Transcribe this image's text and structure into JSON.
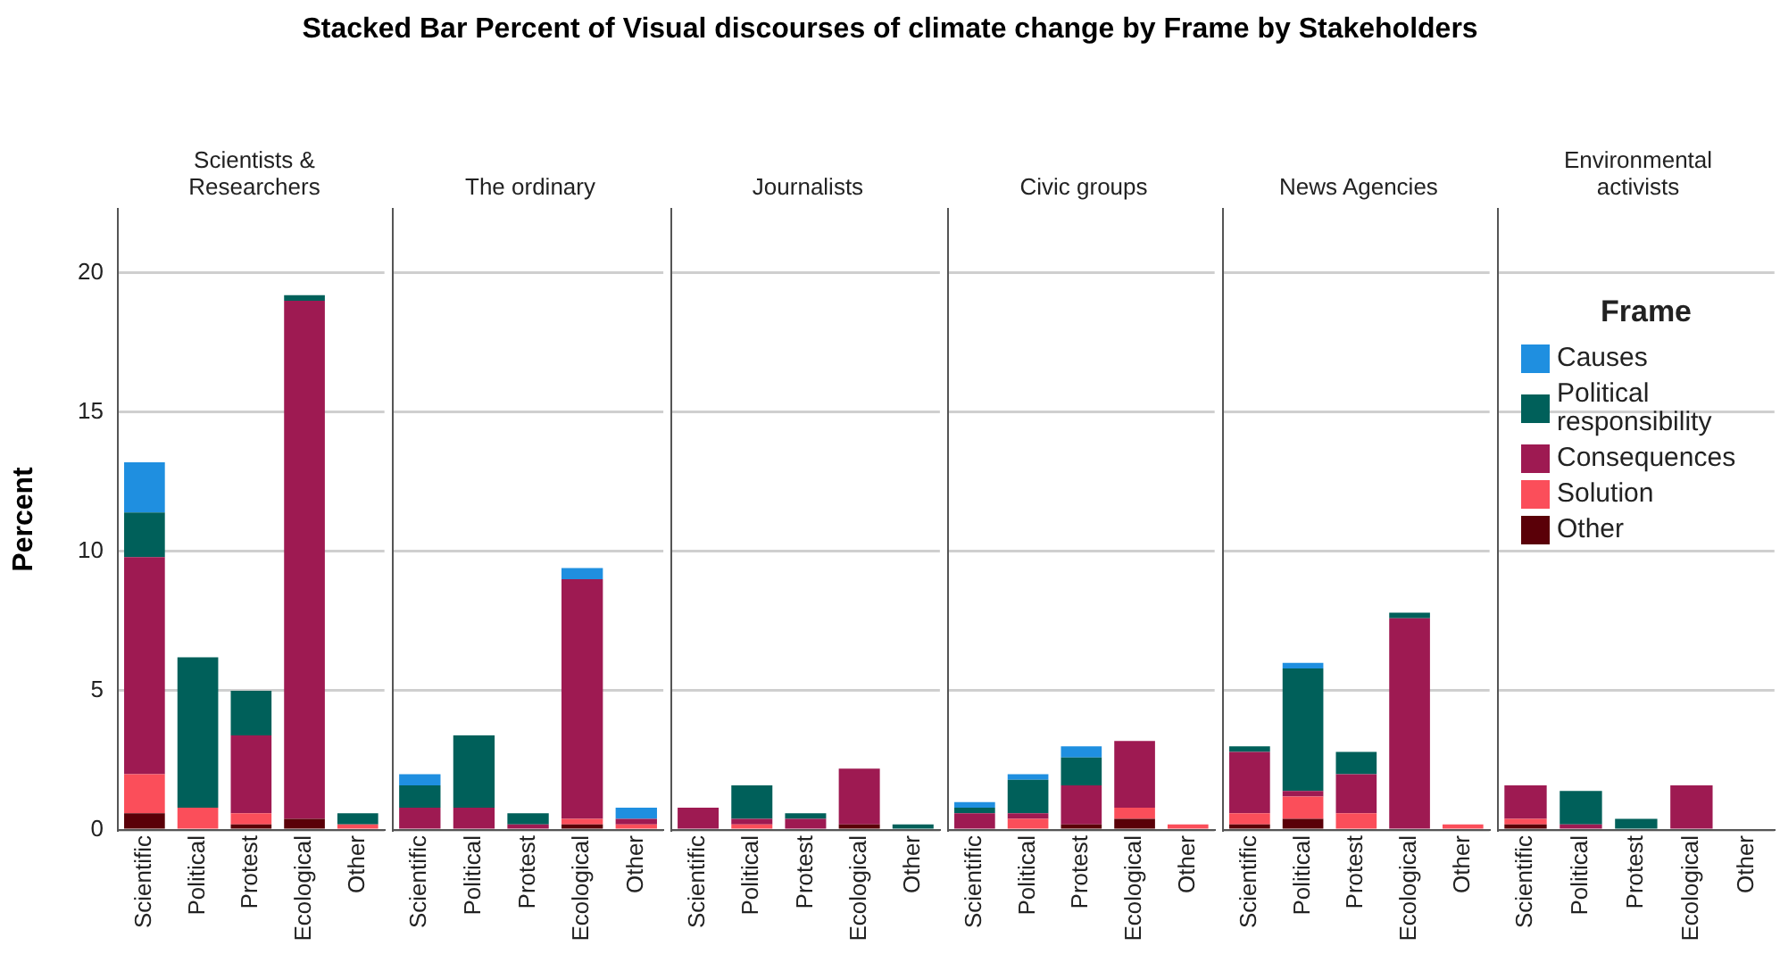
{
  "chart_data": [
    {
      "type": "bar",
      "title": "Scientists & Researchers",
      "annotations": [
        "Stacked Bar Percent of Visual discourses of climate change by Frame by Stakeholders"
      ],
      "ylabel": "Percent",
      "categories": [
        "Scientific",
        "Political",
        "Protest",
        "Ecological",
        "Other"
      ],
      "stacked": true,
      "ylim": [
        0,
        22.3
      ],
      "yticks": [
        0,
        5,
        10,
        15,
        20
      ],
      "grid": "y",
      "legend": false,
      "series": [
        {
          "color": "#5a0008",
          "values": [
            0.6,
            0,
            0.2,
            0.4,
            0
          ]
        },
        {
          "color": "#fb4e5a",
          "values": [
            1.4,
            0.8,
            0.4,
            0,
            0.2
          ]
        },
        {
          "color": "#9e1a52",
          "values": [
            7.8,
            0,
            2.8,
            18.6,
            0
          ]
        },
        {
          "color": "#00605a",
          "values": [
            1.6,
            5.4,
            1.6,
            0.2,
            0.4
          ]
        },
        {
          "color": "#1f8fe0",
          "values": [
            1.8,
            0,
            0,
            0,
            0
          ]
        }
      ]
    },
    {
      "type": "bar",
      "title": "The ordinary",
      "categories": [
        "Scientific",
        "Political",
        "Protest",
        "Ecological",
        "Other"
      ],
      "stacked": true,
      "ylim": [
        0,
        22.3
      ],
      "yticks": [
        0,
        5,
        10,
        15,
        20
      ],
      "grid": "y",
      "legend": false,
      "tick_labels": "x",
      "series": [
        {
          "color": "#5a0008",
          "values": [
            0,
            0,
            0,
            0.2,
            0
          ]
        },
        {
          "color": "#fb4e5a",
          "values": [
            0,
            0,
            0,
            0.2,
            0.2
          ]
        },
        {
          "color": "#9e1a52",
          "values": [
            0.8,
            0.8,
            0.2,
            8.6,
            0.2
          ]
        },
        {
          "color": "#00605a",
          "values": [
            0.8,
            2.6,
            0.4,
            0,
            0
          ]
        },
        {
          "color": "#1f8fe0",
          "values": [
            0.4,
            0,
            0,
            0.4,
            0.4
          ]
        }
      ]
    },
    {
      "type": "bar",
      "title": "Journalists",
      "categories": [
        "Scientific",
        "Political",
        "Protest",
        "Ecological",
        "Other"
      ],
      "stacked": true,
      "ylim": [
        0,
        22.3
      ],
      "yticks": [
        0,
        5,
        10,
        15,
        20
      ],
      "grid": "y",
      "legend": false,
      "tick_labels": "x",
      "series": [
        {
          "color": "#5a0008",
          "values": [
            0,
            0,
            0,
            0.2,
            0
          ]
        },
        {
          "color": "#fb4e5a",
          "values": [
            0,
            0.2,
            0,
            0,
            0
          ]
        },
        {
          "color": "#9e1a52",
          "values": [
            0.8,
            0.2,
            0.4,
            2,
            0
          ]
        },
        {
          "color": "#00605a",
          "values": [
            0,
            1.2,
            0.2,
            0,
            0.2
          ]
        },
        {
          "color": "#1f8fe0",
          "values": [
            0,
            0,
            0,
            0,
            0
          ]
        }
      ]
    },
    {
      "type": "bar",
      "title": "Civic groups",
      "categories": [
        "Scientific",
        "Political",
        "Protest",
        "Ecological",
        "Other"
      ],
      "stacked": true,
      "ylim": [
        0,
        22.3
      ],
      "yticks": [
        0,
        5,
        10,
        15,
        20
      ],
      "grid": "y",
      "legend": false,
      "tick_labels": "x",
      "series": [
        {
          "color": "#5a0008",
          "values": [
            0,
            0,
            0.2,
            0.4,
            0
          ]
        },
        {
          "color": "#fb4e5a",
          "values": [
            0,
            0.4,
            0,
            0.4,
            0.2
          ]
        },
        {
          "color": "#9e1a52",
          "values": [
            0.6,
            0.2,
            1.4,
            2.4,
            0
          ]
        },
        {
          "color": "#00605a",
          "values": [
            0.2,
            1.2,
            1,
            0,
            0
          ]
        },
        {
          "color": "#1f8fe0",
          "values": [
            0.2,
            0.2,
            0.4,
            0,
            0
          ]
        }
      ]
    },
    {
      "type": "bar",
      "title": "News Agencies",
      "categories": [
        "Scientific",
        "Political",
        "Protest",
        "Ecological",
        "Other"
      ],
      "stacked": true,
      "ylim": [
        0,
        22.3
      ],
      "yticks": [
        0,
        5,
        10,
        15,
        20
      ],
      "grid": "y",
      "legend": false,
      "tick_labels": "x",
      "series": [
        {
          "color": "#5a0008",
          "values": [
            0.2,
            0.4,
            0,
            0,
            0
          ]
        },
        {
          "color": "#fb4e5a",
          "values": [
            0.4,
            0.8,
            0.6,
            0,
            0.2
          ]
        },
        {
          "color": "#9e1a52",
          "values": [
            2.2,
            0.2,
            1.4,
            7.6,
            0
          ]
        },
        {
          "color": "#00605a",
          "values": [
            0.2,
            4.4,
            0.8,
            0.2,
            0
          ]
        },
        {
          "color": "#1f8fe0",
          "values": [
            0,
            0.2,
            0,
            0,
            0
          ]
        }
      ]
    },
    {
      "type": "bar",
      "title": "Environmental activists",
      "legend_title": "Frame",
      "categories": [
        "Scientific",
        "Political",
        "Protest",
        "Ecological",
        "Other"
      ],
      "stacked": true,
      "ylim": [
        0,
        22.3
      ],
      "yticks": [
        0,
        5,
        10,
        15,
        20
      ],
      "grid": "y",
      "legend": "right",
      "tick_labels": "x",
      "series": [
        {
          "name": "Other",
          "color": "#5a0008",
          "values": [
            0.2,
            0,
            0,
            0,
            0
          ]
        },
        {
          "name": "Solution",
          "color": "#fb4e5a",
          "values": [
            0.2,
            0,
            0,
            0,
            0
          ]
        },
        {
          "name": "Consequences",
          "color": "#9e1a52",
          "values": [
            1.2,
            0.2,
            0,
            1.6,
            0
          ]
        },
        {
          "name": "Political responsibility",
          "color": "#00605a",
          "values": [
            0,
            1.2,
            0.4,
            0,
            0
          ]
        },
        {
          "name": "Causes",
          "color": "#1f8fe0",
          "values": [
            0,
            0,
            0,
            0,
            0
          ]
        }
      ]
    }
  ]
}
